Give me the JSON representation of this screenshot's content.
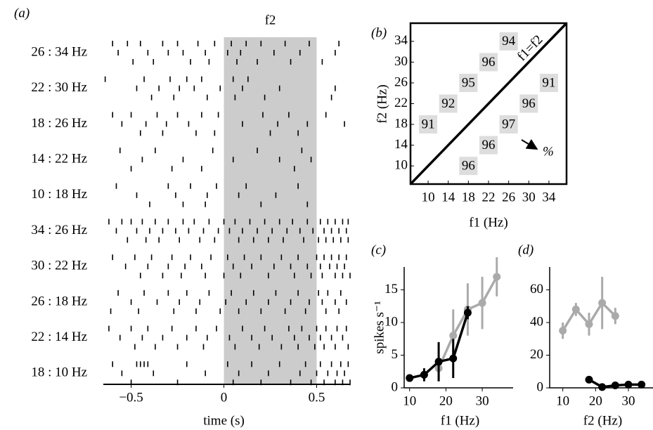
{
  "chart_data": [
    {
      "type": "raster",
      "panel_label": "(a)",
      "xlabel": "time (s)",
      "xlim": [
        -0.65,
        0.68
      ],
      "xticks": [
        {
          "value": -0.5,
          "label": "−0.5"
        },
        0,
        0.5
      ],
      "stimulus": {
        "label": "f2",
        "start": 0,
        "end": 0.5,
        "color": "#cccccc"
      },
      "conditions": [
        {
          "label": "26 : 34 Hz",
          "trials": [
            [
              -0.6,
              -0.52,
              -0.45,
              -0.33,
              -0.25,
              -0.14,
              -0.05,
              0.04,
              0.12,
              0.2,
              0.33,
              0.46,
              0.62
            ],
            [
              -0.57,
              -0.41,
              -0.3,
              -0.22,
              -0.1,
              0.02,
              0.09,
              0.27,
              0.41,
              0.6
            ],
            [
              -0.49,
              -0.38,
              -0.18,
              -0.08,
              0.07,
              0.18,
              0.36,
              0.53
            ]
          ]
        },
        {
          "label": "22 : 30 Hz",
          "trials": [
            [
              -0.64,
              -0.43,
              -0.29,
              -0.2,
              -0.12,
              0.05,
              0.13
            ],
            [
              -0.47,
              -0.35,
              -0.24,
              -0.16,
              -0.02,
              0.1,
              0.3,
              0.6
            ],
            [
              -0.39,
              -0.27,
              -0.09,
              0.06,
              0.22,
              0.58
            ]
          ]
        },
        {
          "label": "18 : 26 Hz",
          "trials": [
            [
              -0.6,
              -0.5,
              -0.36,
              -0.25,
              -0.12,
              -0.03,
              0.21,
              0.35,
              0.55
            ],
            [
              -0.55,
              -0.42,
              -0.31,
              -0.19,
              0.1,
              0.29,
              0.45,
              0.65
            ],
            [
              -0.45,
              -0.33,
              -0.15,
              -0.05,
              0.25,
              0.4
            ]
          ]
        },
        {
          "label": "14 : 22 Hz",
          "trials": [
            [
              -0.56,
              -0.37,
              -0.06,
              0.18,
              0.42
            ],
            [
              -0.44,
              -0.22,
              0.05,
              0.3,
              0.47
            ],
            [
              -0.5,
              -0.28,
              -0.12,
              0.38
            ]
          ]
        },
        {
          "label": "10 : 18 Hz",
          "trials": [
            [
              -0.58,
              -0.3,
              -0.18,
              -0.04,
              0.12,
              0.4
            ],
            [
              -0.47,
              -0.26,
              -0.09,
              0.08,
              0.28
            ],
            [
              -0.4,
              -0.22,
              -0.1,
              0.2,
              0.45
            ]
          ]
        },
        {
          "label": "34 : 26 Hz",
          "trials": [
            [
              -0.62,
              -0.55,
              -0.5,
              -0.44,
              -0.37,
              -0.3,
              -0.22,
              -0.16,
              -0.08,
              0.0,
              0.06,
              0.14,
              0.22,
              0.3,
              0.37,
              0.45,
              0.52,
              0.56,
              0.6,
              0.64,
              0.67
            ],
            [
              -0.58,
              -0.47,
              -0.4,
              -0.33,
              -0.26,
              -0.19,
              -0.11,
              -0.03,
              0.03,
              0.1,
              0.18,
              0.26,
              0.34,
              0.41,
              0.48,
              0.54,
              0.58,
              0.62,
              0.66
            ],
            [
              -0.52,
              -0.42,
              -0.35,
              -0.24,
              -0.13,
              -0.05,
              0.08,
              0.16,
              0.24,
              0.32,
              0.43,
              0.51,
              0.55,
              0.59,
              0.63,
              0.67
            ]
          ]
        },
        {
          "label": "30 : 22 Hz",
          "trials": [
            [
              -0.6,
              -0.48,
              -0.39,
              -0.28,
              -0.18,
              -0.07,
              0.02,
              0.11,
              0.2,
              0.31,
              0.4,
              0.5,
              0.54,
              0.58,
              0.62,
              0.66
            ],
            [
              -0.53,
              -0.41,
              -0.3,
              -0.21,
              -0.12,
              0.05,
              0.15,
              0.27,
              0.36,
              0.45,
              0.52,
              0.57,
              0.61,
              0.65
            ],
            [
              -0.45,
              -0.33,
              -0.23,
              -0.1,
              0.0,
              0.09,
              0.24,
              0.38,
              0.47,
              0.53,
              0.6,
              0.64,
              0.68
            ]
          ]
        },
        {
          "label": "26 : 18 Hz",
          "trials": [
            [
              -0.57,
              -0.43,
              -0.3,
              -0.2,
              -0.08,
              0.04,
              0.16,
              0.28,
              0.4,
              0.51,
              0.56,
              0.63
            ],
            [
              -0.5,
              -0.36,
              -0.24,
              -0.13,
              0.01,
              0.12,
              0.24,
              0.36,
              0.46,
              0.53,
              0.6,
              0.66
            ],
            [
              -0.61,
              -0.46,
              -0.27,
              -0.15,
              -0.02,
              0.08,
              0.2,
              0.33,
              0.44,
              0.55,
              0.62
            ]
          ]
        },
        {
          "label": "22 : 14 Hz",
          "trials": [
            [
              -0.62,
              -0.5,
              -0.41,
              -0.28,
              -0.15,
              -0.04,
              0.1,
              0.22,
              0.35,
              0.42,
              0.5,
              0.55,
              0.61,
              0.66
            ],
            [
              -0.56,
              -0.44,
              -0.33,
              -0.2,
              -0.09,
              0.03,
              0.15,
              0.26,
              0.38,
              0.46,
              0.52,
              0.58,
              0.64
            ],
            [
              -0.48,
              -0.37,
              -0.25,
              -0.11,
              0.06,
              0.19,
              0.31,
              0.4,
              0.49,
              0.54,
              0.6,
              0.67
            ]
          ]
        },
        {
          "label": "18 : 10 Hz",
          "trials": [
            [
              -0.6,
              -0.47,
              -0.45,
              -0.43,
              -0.41,
              -0.2,
              0.02,
              0.15,
              0.3,
              0.44,
              0.52,
              0.58,
              0.63,
              0.67
            ],
            [
              -0.55,
              -0.38,
              -0.1,
              0.08,
              0.24,
              0.41,
              0.5,
              0.56,
              0.61,
              0.65
            ],
            [
              -0.5,
              -0.25,
              0.05,
              0.2,
              0.36,
              0.47,
              0.54,
              0.6,
              0.64,
              0.68
            ]
          ]
        }
      ]
    },
    {
      "type": "matrix",
      "panel_label": "(b)",
      "xlabel": "f1 (Hz)",
      "ylabel": "f2 (Hz)",
      "diagonal_label": "f1=f2",
      "annotation": "%",
      "xlim": [
        6.5,
        37.5
      ],
      "ylim": [
        6.5,
        37.5
      ],
      "xticks": [
        10,
        14,
        18,
        22,
        26,
        30,
        34
      ],
      "yticks": [
        10,
        14,
        18,
        22,
        26,
        30,
        34
      ],
      "cell_color": "#dddddd",
      "cells": [
        {
          "f1": 10,
          "f2": 18,
          "value": 91
        },
        {
          "f1": 14,
          "f2": 22,
          "value": 92
        },
        {
          "f1": 18,
          "f2": 26,
          "value": 95
        },
        {
          "f1": 22,
          "f2": 30,
          "value": 96
        },
        {
          "f1": 26,
          "f2": 34,
          "value": 94
        },
        {
          "f1": 18,
          "f2": 10,
          "value": 96
        },
        {
          "f1": 22,
          "f2": 14,
          "value": 96
        },
        {
          "f1": 26,
          "f2": 18,
          "value": 97
        },
        {
          "f1": 30,
          "f2": 22,
          "value": 96
        },
        {
          "f1": 34,
          "f2": 26,
          "value": 91
        }
      ]
    },
    {
      "type": "line",
      "panel_label": "(c)",
      "xlabel": "f1 (Hz)",
      "ylabel": "spikes s⁻¹",
      "xlim": [
        8.5,
        38.5
      ],
      "ylim": [
        0,
        18.5
      ],
      "xticks": [
        10,
        20,
        30
      ],
      "yticks": [
        0,
        5,
        10,
        15
      ],
      "series": [
        {
          "color": "#aaaaaa",
          "x": [
            18,
            22,
            26,
            30,
            34
          ],
          "values": [
            3,
            8,
            12,
            13,
            17
          ],
          "errors": [
            2,
            4,
            4,
            4,
            3
          ]
        },
        {
          "color": "#000000",
          "x": [
            10,
            14,
            18,
            22,
            26
          ],
          "values": [
            1.5,
            2,
            4,
            4.5,
            11.5
          ],
          "errors": [
            0.5,
            1,
            3,
            3,
            1
          ]
        }
      ]
    },
    {
      "type": "line",
      "panel_label": "(d)",
      "xlabel": "f2 (Hz)",
      "xlim": [
        6,
        37.5
      ],
      "ylim": [
        0,
        74
      ],
      "xticks": [
        10,
        20,
        30
      ],
      "yticks": [
        0,
        20,
        40,
        60
      ],
      "series": [
        {
          "color": "#aaaaaa",
          "x": [
            10,
            14,
            18,
            22,
            26
          ],
          "values": [
            35,
            48,
            39,
            52,
            44
          ],
          "errors": [
            5,
            4,
            7,
            16,
            5
          ]
        },
        {
          "color": "#000000",
          "x": [
            18,
            22,
            26,
            30,
            34
          ],
          "values": [
            5,
            0.5,
            1.5,
            2,
            2
          ],
          "errors": [
            1,
            0.5,
            0.5,
            0.5,
            1
          ]
        }
      ]
    }
  ]
}
